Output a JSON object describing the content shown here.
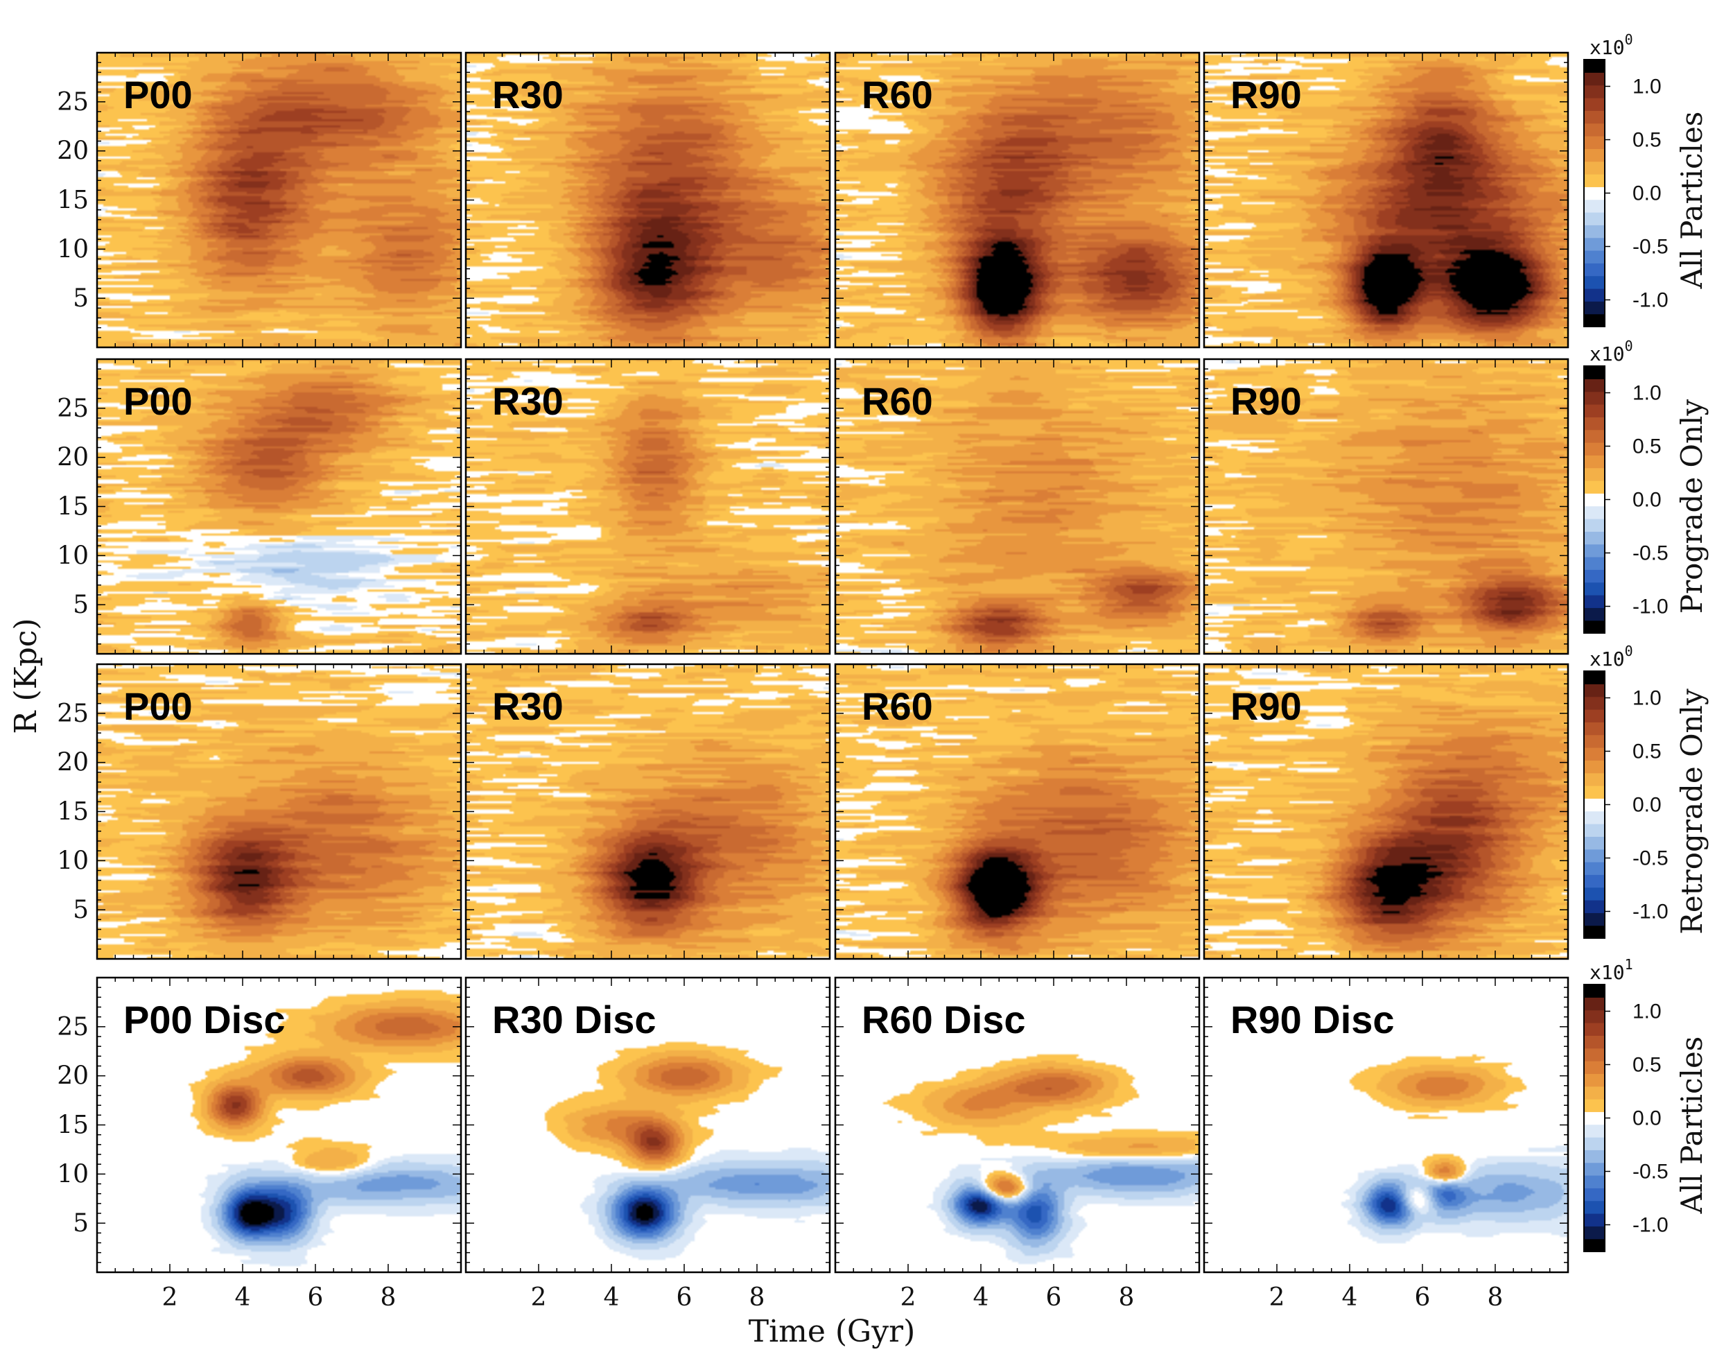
{
  "chart_data": {
    "type": "heatmap",
    "xlabel": "Time (Gyr)",
    "ylabel": "R (Kpc)",
    "xlim": [
      0,
      10
    ],
    "ylim": [
      0,
      30
    ],
    "x_ticks": [
      "2",
      "4",
      "6",
      "8"
    ],
    "y_ticks": [
      "5",
      "10",
      "15",
      "20",
      "25"
    ],
    "grid": false,
    "columns": [
      "P00",
      "R30",
      "R60",
      "R90"
    ],
    "rows": [
      {
        "label": "All Particles",
        "colorbar": {
          "multiplier": "x10",
          "exponent": "0",
          "ticks": [
            "1.0",
            "0.5",
            "0.0",
            "-0.5",
            "-1.0"
          ],
          "range": [
            -1.25,
            1.25
          ]
        },
        "panels": [
          {
            "label": "P00",
            "features": [
              {
                "t": 4.2,
                "r": 15,
                "amp": 0.75,
                "st": 1.2,
                "sr": 6
              },
              {
                "t": 6.5,
                "r": 24,
                "amp": 0.6,
                "st": 2.0,
                "sr": 4
              },
              {
                "t": 8.5,
                "r": 10,
                "amp": 0.45,
                "st": 1.5,
                "sr": 5
              }
            ]
          },
          {
            "label": "R30",
            "features": [
              {
                "t": 5.2,
                "r": 8,
                "amp": 1.0,
                "st": 1.2,
                "sr": 5
              },
              {
                "t": 5.5,
                "r": 20,
                "amp": 0.55,
                "st": 1.8,
                "sr": 6
              },
              {
                "t": 8.5,
                "r": 10,
                "amp": 0.45,
                "st": 1.5,
                "sr": 5
              }
            ]
          },
          {
            "label": "R60",
            "features": [
              {
                "t": 4.6,
                "r": 6,
                "amp": 1.35,
                "st": 0.8,
                "sr": 3.5
              },
              {
                "t": 4.7,
                "r": 16,
                "amp": 0.65,
                "st": 1.4,
                "sr": 6
              },
              {
                "t": 8.3,
                "r": 7,
                "amp": 0.85,
                "st": 1.3,
                "sr": 3.5
              },
              {
                "t": 7.5,
                "r": 22,
                "amp": 0.45,
                "st": 2.0,
                "sr": 5
              }
            ]
          },
          {
            "label": "R90",
            "features": [
              {
                "t": 5.0,
                "r": 6,
                "amp": 1.25,
                "st": 0.7,
                "sr": 3
              },
              {
                "t": 8.0,
                "r": 6,
                "amp": 1.3,
                "st": 1.0,
                "sr": 3
              },
              {
                "t": 6.6,
                "r": 14,
                "amp": 0.75,
                "st": 2.2,
                "sr": 6
              },
              {
                "t": 6.5,
                "r": 22,
                "amp": 0.55,
                "st": 1.0,
                "sr": 5
              }
            ]
          }
        ]
      },
      {
        "label": "Prograde Only",
        "colorbar": {
          "multiplier": "x10",
          "exponent": "0",
          "ticks": [
            "1.0",
            "0.5",
            "0.0",
            "-0.5",
            "-1.0"
          ],
          "range": [
            -1.25,
            1.25
          ]
        },
        "panels": [
          {
            "label": "P00",
            "features": [
              {
                "t": 4.6,
                "r": 19,
                "amp": 0.55,
                "st": 1.3,
                "sr": 4
              },
              {
                "t": 6.5,
                "r": 25,
                "amp": 0.45,
                "st": 1.4,
                "sr": 3
              },
              {
                "t": 4.2,
                "r": 3,
                "amp": 0.6,
                "st": 0.6,
                "sr": 1.5
              },
              {
                "t": 5.5,
                "r": 9,
                "amp": -0.25,
                "st": 2.0,
                "sr": 3
              }
            ]
          },
          {
            "label": "R30",
            "features": [
              {
                "t": 5.2,
                "r": 19,
                "amp": 0.5,
                "st": 0.9,
                "sr": 5
              },
              {
                "t": 5.0,
                "r": 3,
                "amp": 0.6,
                "st": 0.9,
                "sr": 1.5
              },
              {
                "t": 7.5,
                "r": 6,
                "amp": 0.25,
                "st": 1.8,
                "sr": 3
              }
            ]
          },
          {
            "label": "R60",
            "features": [
              {
                "t": 4.5,
                "r": 3,
                "amp": 0.75,
                "st": 0.9,
                "sr": 1.6
              },
              {
                "t": 8.5,
                "r": 6,
                "amp": 0.65,
                "st": 1.0,
                "sr": 2
              },
              {
                "t": 5.5,
                "r": 16,
                "amp": 0.3,
                "st": 2.2,
                "sr": 8
              }
            ]
          },
          {
            "label": "R90",
            "features": [
              {
                "t": 5.0,
                "r": 3,
                "amp": 0.6,
                "st": 0.8,
                "sr": 1.5
              },
              {
                "t": 8.5,
                "r": 5,
                "amp": 0.85,
                "st": 1.0,
                "sr": 2
              },
              {
                "t": 7.0,
                "r": 16,
                "amp": 0.3,
                "st": 2.5,
                "sr": 8
              }
            ]
          }
        ]
      },
      {
        "label": "Retrograde Only",
        "colorbar": {
          "multiplier": "x10",
          "exponent": "0",
          "ticks": [
            "1.0",
            "0.5",
            "0.0",
            "-0.5",
            "-1.0"
          ],
          "range": [
            -1.25,
            1.25
          ]
        },
        "panels": [
          {
            "label": "P00",
            "features": [
              {
                "t": 4.0,
                "r": 8,
                "amp": 0.85,
                "st": 1.0,
                "sr": 3.5
              },
              {
                "t": 6.5,
                "r": 12,
                "amp": 0.45,
                "st": 2.2,
                "sr": 6
              }
            ]
          },
          {
            "label": "R30",
            "features": [
              {
                "t": 5.0,
                "r": 8,
                "amp": 1.0,
                "st": 1.0,
                "sr": 3.5
              },
              {
                "t": 7.0,
                "r": 12,
                "amp": 0.45,
                "st": 2.0,
                "sr": 6
              }
            ]
          },
          {
            "label": "R60",
            "features": [
              {
                "t": 4.4,
                "r": 7,
                "amp": 1.3,
                "st": 0.8,
                "sr": 3
              },
              {
                "t": 6.8,
                "r": 12,
                "amp": 0.55,
                "st": 2.2,
                "sr": 6
              }
            ]
          },
          {
            "label": "R90",
            "features": [
              {
                "t": 5.0,
                "r": 7,
                "amp": 1.0,
                "st": 1.0,
                "sr": 3.5
              },
              {
                "t": 6.8,
                "r": 10,
                "amp": 0.65,
                "st": 1.3,
                "sr": 5
              },
              {
                "t": 7.5,
                "r": 18,
                "amp": 0.4,
                "st": 2.0,
                "sr": 5
              }
            ]
          }
        ]
      },
      {
        "label": "All Particles",
        "colorbar": {
          "multiplier": "x10",
          "exponent": "1",
          "ticks": [
            "1.0",
            "0.5",
            "0.0",
            "-0.5",
            "-1.0"
          ],
          "range": [
            -1.25,
            1.25
          ]
        },
        "panels": [
          {
            "label": "P00 Disc",
            "features": [
              {
                "t": 4.2,
                "r": 6,
                "amp": -1.2,
                "st": 0.5,
                "sr": 1.8
              },
              {
                "t": 5.2,
                "r": 6,
                "amp": -0.8,
                "st": 0.5,
                "sr": 2.0
              },
              {
                "t": 3.8,
                "r": 17,
                "amp": 0.9,
                "st": 0.5,
                "sr": 1.5
              },
              {
                "t": 5.8,
                "r": 20,
                "amp": 0.7,
                "st": 0.9,
                "sr": 1.4
              },
              {
                "t": 8.5,
                "r": 25,
                "amp": 0.6,
                "st": 1.5,
                "sr": 1.5
              },
              {
                "t": 8.0,
                "r": 9,
                "amp": -0.45,
                "st": 2.0,
                "sr": 1.5
              },
              {
                "t": 6.5,
                "r": 11,
                "amp": 0.35,
                "st": 0.8,
                "sr": 1.2
              }
            ]
          },
          {
            "label": "R30 Disc",
            "features": [
              {
                "t": 4.9,
                "r": 6,
                "amp": -1.2,
                "st": 0.6,
                "sr": 1.8
              },
              {
                "t": 5.2,
                "r": 13,
                "amp": 0.8,
                "st": 0.5,
                "sr": 1.5
              },
              {
                "t": 6.0,
                "r": 20,
                "amp": 0.6,
                "st": 1.0,
                "sr": 1.5
              },
              {
                "t": 8.2,
                "r": 9,
                "amp": -0.5,
                "st": 1.8,
                "sr": 1.5
              },
              {
                "t": 4.2,
                "r": 15,
                "amp": 0.4,
                "st": 1.0,
                "sr": 1.5
              }
            ]
          },
          {
            "label": "R60 Disc",
            "features": [
              {
                "t": 4.0,
                "r": 7,
                "amp": -1.2,
                "st": 0.5,
                "sr": 1.5
              },
              {
                "t": 4.6,
                "r": 8.5,
                "amp": 0.9,
                "st": 0.5,
                "sr": 1.0
              },
              {
                "t": 5.5,
                "r": 6,
                "amp": -0.8,
                "st": 0.5,
                "sr": 2.2
              },
              {
                "t": 6.0,
                "r": 19,
                "amp": 0.6,
                "st": 1.0,
                "sr": 1.3
              },
              {
                "t": 8.3,
                "r": 10,
                "amp": -0.5,
                "st": 1.8,
                "sr": 1.5
              },
              {
                "t": 8.3,
                "r": 12.5,
                "amp": 0.35,
                "st": 1.5,
                "sr": 1.0
              },
              {
                "t": 4.0,
                "r": 17,
                "amp": 0.4,
                "st": 1.0,
                "sr": 1.5
              }
            ]
          },
          {
            "label": "R90 Disc",
            "features": [
              {
                "t": 5.2,
                "r": 7,
                "amp": -1.2,
                "st": 0.5,
                "sr": 1.5
              },
              {
                "t": 5.9,
                "r": 7.5,
                "amp": 1.1,
                "st": 0.5,
                "sr": 1.2
              },
              {
                "t": 6.4,
                "r": 8,
                "amp": -1.0,
                "st": 0.5,
                "sr": 1.5
              },
              {
                "t": 6.6,
                "r": 10,
                "amp": 0.8,
                "st": 0.4,
                "sr": 1.0
              },
              {
                "t": 6.5,
                "r": 19,
                "amp": 0.5,
                "st": 1.0,
                "sr": 1.3
              },
              {
                "t": 8.5,
                "r": 8,
                "amp": -0.4,
                "st": 1.5,
                "sr": 2.0
              }
            ]
          }
        ]
      }
    ]
  }
}
